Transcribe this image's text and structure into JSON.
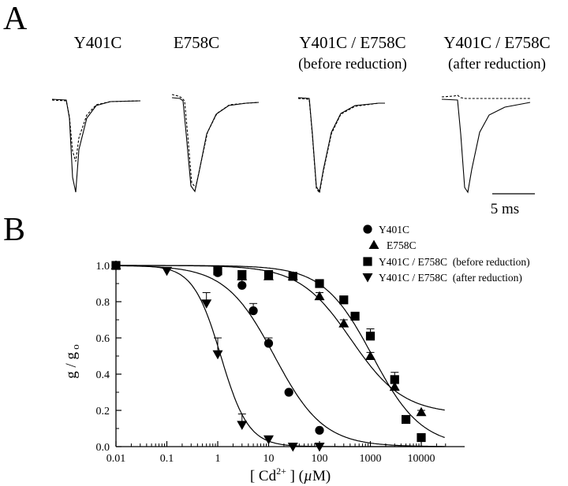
{
  "panels": {
    "a": "A",
    "b": "B"
  },
  "traces": [
    {
      "title": "Y401C",
      "subtitle": ""
    },
    {
      "title": "E758C",
      "subtitle": ""
    },
    {
      "title": "Y401C / E758C",
      "subtitle": "(before reduction)"
    },
    {
      "title": "Y401C / E758C",
      "subtitle": "(after reduction)"
    }
  ],
  "scale_bar": {
    "label": "5 ms"
  },
  "chart_data": {
    "type": "scatter",
    "xlabel": "[ Cd2+ ] (µM)",
    "ylabel": "g / g o",
    "x_scale": "log",
    "xlim": [
      0.01,
      30000
    ],
    "ylim": [
      0,
      1.05
    ],
    "x_ticks": [
      0.01,
      0.1,
      1,
      10,
      100,
      1000,
      10000
    ],
    "x_tick_labels": [
      "0.01",
      "0.1",
      "1",
      "10",
      "100",
      "1000",
      "10000"
    ],
    "y_ticks": [
      0,
      0.2,
      0.4,
      0.6,
      0.8,
      1.0
    ],
    "y_tick_labels": [
      "0.0",
      "0.2",
      "0.4",
      "0.6",
      "0.8",
      "1.0"
    ],
    "legend_position": "top-right",
    "grid": false,
    "series": [
      {
        "name": "Y401C",
        "marker": "circle",
        "x": [
          0.01,
          1,
          3,
          5,
          10,
          25,
          100
        ],
        "y": [
          1.0,
          0.96,
          0.89,
          0.75,
          0.57,
          0.3,
          0.09
        ],
        "err": [
          0,
          0.02,
          0.03,
          0.04,
          0.03,
          0.01,
          0.01
        ],
        "fit": {
          "ic50": 13,
          "hill": 0.9,
          "min": 0
        }
      },
      {
        "name": "E758C",
        "marker": "triangle-up",
        "x": [
          0.01,
          3,
          10,
          30,
          100,
          300,
          1000,
          3000,
          10000
        ],
        "y": [
          1.0,
          0.94,
          0.94,
          0.94,
          0.83,
          0.68,
          0.5,
          0.33,
          0.19
        ],
        "err": [
          0,
          0.01,
          0.02,
          0.01,
          0.02,
          0.02,
          0.02,
          0.03,
          0.01
        ],
        "fit": {
          "ic50": 420,
          "hill": 0.85,
          "min": 0.18
        }
      },
      {
        "name": "Y401C / E758C  (before reduction)",
        "marker": "square",
        "x": [
          0.01,
          1,
          3,
          10,
          30,
          100,
          300,
          500,
          1000,
          3000,
          5000,
          10000
        ],
        "y": [
          1.0,
          0.97,
          0.95,
          0.95,
          0.94,
          0.9,
          0.81,
          0.72,
          0.61,
          0.37,
          0.15,
          0.05
        ],
        "err": [
          0,
          0.01,
          0.01,
          0.02,
          0.01,
          0.01,
          0.01,
          0.01,
          0.04,
          0.04,
          0.01,
          0.01
        ],
        "fit": {
          "ic50": 1100,
          "hill": 0.9,
          "min": 0
        }
      },
      {
        "name": "Y401C / E758C  (after reduction)",
        "marker": "triangle-down",
        "x": [
          0.1,
          0.6,
          1,
          3,
          10,
          30,
          100
        ],
        "y": [
          0.97,
          0.79,
          0.51,
          0.12,
          0.04,
          0.0,
          0.0
        ],
        "err": [
          0,
          0.06,
          0.09,
          0.06,
          0.01,
          0,
          0
        ],
        "fit": {
          "ic50": 1.15,
          "hill": 1.6,
          "min": 0
        }
      }
    ]
  }
}
